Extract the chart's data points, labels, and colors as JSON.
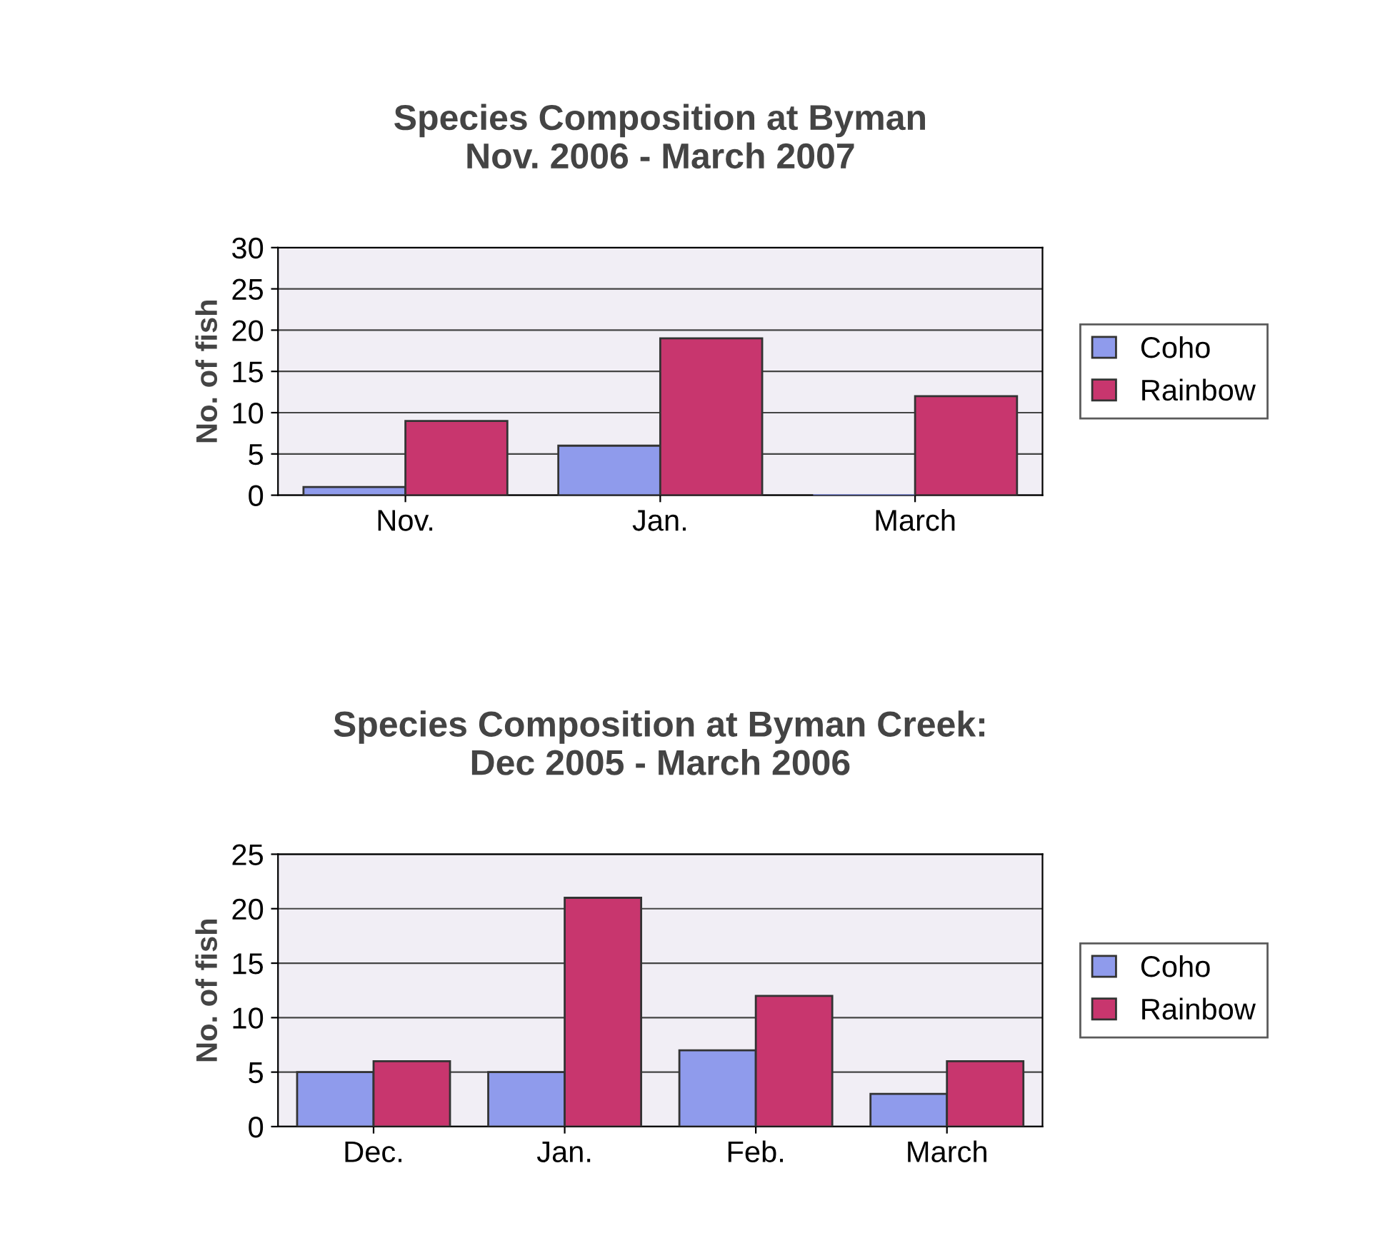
{
  "chart_data": [
    {
      "type": "bar",
      "title": "Species Composition at Byman\nNov. 2006 - March 2007",
      "ylabel": "No. of fish",
      "categories": [
        "Nov.",
        "Jan.",
        "March"
      ],
      "series": [
        {
          "name": "Coho",
          "color": "#8f9bec",
          "values": [
            1,
            6,
            0
          ]
        },
        {
          "name": "Rainbow",
          "color": "#c8366e",
          "values": [
            9,
            19,
            12
          ]
        }
      ],
      "ylim": [
        0,
        30
      ],
      "yticks": [
        0,
        5,
        10,
        15,
        20,
        25,
        30
      ],
      "grid": "y",
      "legend": "right"
    },
    {
      "type": "bar",
      "title": "Species Composition at Byman Creek:\nDec 2005 - March 2006",
      "ylabel": "No. of fish",
      "categories": [
        "Dec.",
        "Jan.",
        "Feb.",
        "March"
      ],
      "series": [
        {
          "name": "Coho",
          "color": "#8f9bec",
          "values": [
            5,
            5,
            7,
            3
          ]
        },
        {
          "name": "Rainbow",
          "color": "#c8366e",
          "values": [
            6,
            21,
            12,
            6
          ]
        }
      ],
      "ylim": [
        0,
        25
      ],
      "yticks": [
        0,
        5,
        10,
        15,
        20,
        25
      ],
      "grid": "y",
      "legend": "right"
    }
  ]
}
